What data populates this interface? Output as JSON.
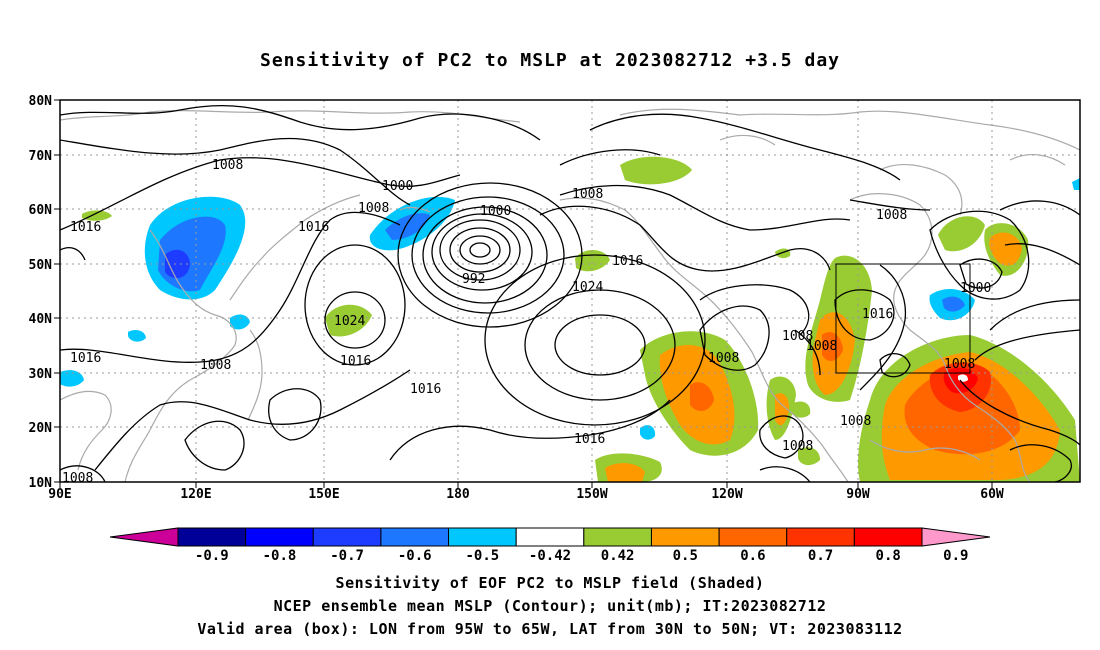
{
  "title": "Sensitivity of PC2 to MSLP at 2023082712 +3.5 day",
  "captions": {
    "line1": "Sensitivity of EOF PC2 to MSLP field (Shaded)",
    "line2": "NCEP ensemble mean MSLP (Contour); unit(mb); IT:2023082712",
    "line3": "Valid area (box): LON from 95W to 65W, LAT from 30N to 50N; VT: 2023083112"
  },
  "map": {
    "lon_labels": [
      "90E",
      "120E",
      "150E",
      "180",
      "150W",
      "120W",
      "90W",
      "60W"
    ],
    "lat_labels": [
      "80N",
      "70N",
      "60N",
      "50N",
      "40N",
      "30N",
      "20N",
      "10N"
    ],
    "contour_labels": [
      "1008",
      "1016",
      "1000",
      "1008",
      "1016",
      "1000",
      "1008",
      "992",
      "1016",
      "1024",
      "1024",
      "1016",
      "1008",
      "1016",
      "1016",
      "1008",
      "1008",
      "1008",
      "1008",
      "1016",
      "1000",
      "1008",
      "1008",
      "1016",
      "1008",
      "1008"
    ],
    "valid_box": {
      "lon_west": -95,
      "lon_east": -65,
      "lat_south": 30,
      "lat_north": 50
    }
  },
  "colorbar": {
    "labels": [
      "-0.9",
      "-0.8",
      "-0.7",
      "-0.6",
      "-0.5",
      "-0.42",
      "0.42",
      "0.5",
      "0.6",
      "0.7",
      "0.8",
      "0.9"
    ],
    "colors": [
      "#000099",
      "#0000ff",
      "#1e3cff",
      "#1e78ff",
      "#00c8ff",
      "#ffffff",
      "#99cc33",
      "#ff9900",
      "#ff6600",
      "#ff3300",
      "#ff0000"
    ],
    "end_low": "#cc0099",
    "end_high": "#ff99cc"
  },
  "colors": {
    "contour": "#000000",
    "coast": "#aaaaaa",
    "grid": "#999999"
  }
}
